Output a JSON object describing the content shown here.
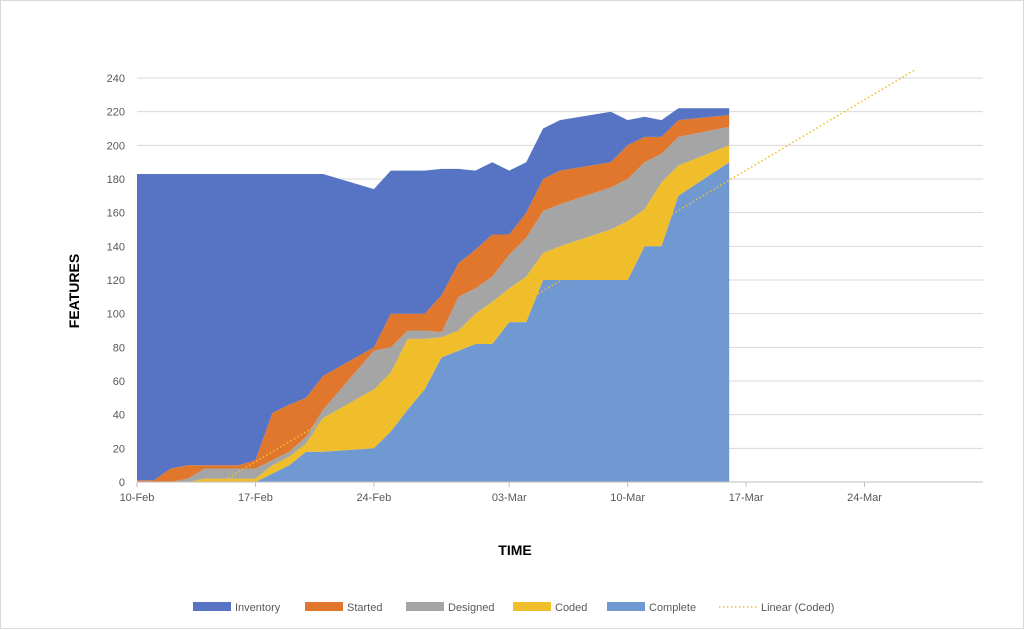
{
  "chart_data": {
    "type": "area",
    "stacked": true,
    "xlabel": "TIME",
    "ylabel": "FEATURES",
    "ylim": [
      0,
      240
    ],
    "yticks": [
      0,
      20,
      40,
      60,
      80,
      100,
      120,
      140,
      160,
      180,
      200,
      220,
      240
    ],
    "xlim": [
      "2020-02-10",
      "2020-03-31"
    ],
    "xticks": [
      {
        "date": "2020-02-10",
        "label": "10-Feb"
      },
      {
        "date": "2020-02-17",
        "label": "17-Feb"
      },
      {
        "date": "2020-02-24",
        "label": "24-Feb"
      },
      {
        "date": "2020-03-03",
        "label": "03-Mar"
      },
      {
        "date": "2020-03-10",
        "label": "10-Mar"
      },
      {
        "date": "2020-03-17",
        "label": "17-Mar"
      },
      {
        "date": "2020-03-24",
        "label": "24-Mar"
      }
    ],
    "grid": true,
    "legend_position": "bottom",
    "x": [
      "2020-02-10",
      "2020-02-11",
      "2020-02-12",
      "2020-02-13",
      "2020-02-14",
      "2020-02-15",
      "2020-02-16",
      "2020-02-17",
      "2020-02-18",
      "2020-02-19",
      "2020-02-20",
      "2020-02-21",
      "2020-02-24",
      "2020-02-25",
      "2020-02-26",
      "2020-02-27",
      "2020-02-28",
      "2020-02-29",
      "2020-03-01",
      "2020-03-02",
      "2020-03-03",
      "2020-03-04",
      "2020-03-05",
      "2020-03-06",
      "2020-03-09",
      "2020-03-10",
      "2020-03-11",
      "2020-03-12",
      "2020-03-13",
      "2020-03-16"
    ],
    "series": [
      {
        "name": "Complete",
        "color": "#7099d2",
        "values": [
          0,
          0,
          0,
          0,
          0,
          0,
          0,
          0,
          5,
          10,
          18,
          18,
          20,
          30,
          43,
          55,
          74,
          78,
          82,
          82,
          95,
          95,
          120,
          120,
          120,
          120,
          140,
          140,
          170,
          190
        ]
      },
      {
        "name": "Coded",
        "color": "#f0be2b",
        "values": [
          0,
          0,
          0,
          0,
          2,
          2,
          2,
          2,
          5,
          5,
          5,
          20,
          35,
          35,
          42,
          30,
          12,
          12,
          18,
          25,
          20,
          27,
          16,
          20,
          30,
          35,
          22,
          38,
          18,
          10
        ]
      },
      {
        "name": "Designed",
        "color": "#a5a5a5",
        "values": [
          0,
          0,
          0,
          2,
          6,
          6,
          6,
          6,
          3,
          3,
          4,
          5,
          23,
          15,
          5,
          5,
          3,
          20,
          15,
          15,
          20,
          23,
          25,
          25,
          25,
          25,
          28,
          17,
          17,
          11
        ]
      },
      {
        "name": "Started",
        "color": "#e0772c",
        "values": [
          1,
          1,
          8,
          8,
          2,
          2,
          2,
          5,
          28,
          28,
          23,
          20,
          2,
          20,
          10,
          10,
          22,
          20,
          23,
          25,
          12,
          15,
          19,
          20,
          15,
          20,
          15,
          10,
          10,
          7
        ]
      },
      {
        "name": "Inventory",
        "color": "#5673c4",
        "values": [
          182,
          182,
          175,
          173,
          173,
          173,
          173,
          170,
          142,
          137,
          133,
          120,
          94,
          85,
          85,
          85,
          75,
          56,
          47,
          43,
          38,
          30,
          30,
          30,
          30,
          15,
          12,
          10,
          7,
          4
        ]
      }
    ],
    "trendline": {
      "name": "Linear (Coded)",
      "color": "#f0be2b",
      "start": {
        "x": "2020-02-15",
        "y": 0
      },
      "end": {
        "x": "2020-03-27",
        "y": 245
      }
    }
  }
}
